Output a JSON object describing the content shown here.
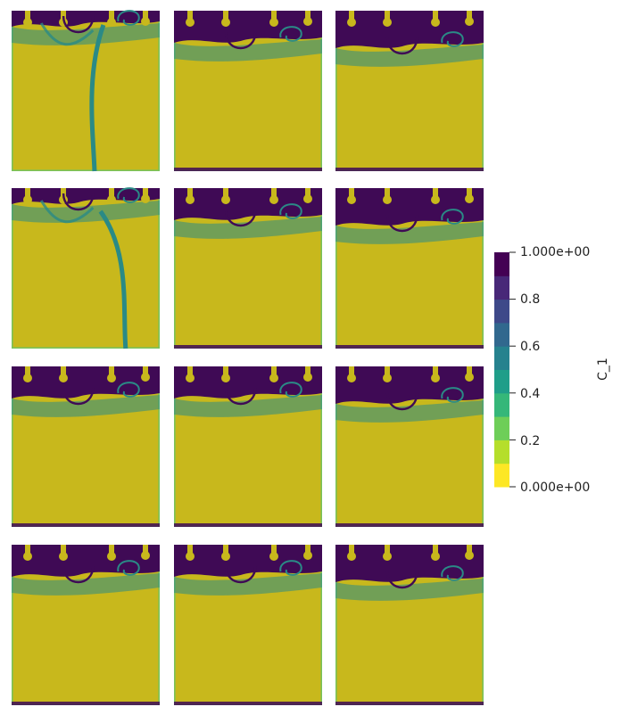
{
  "chart_data": {
    "type": "heatmap",
    "panel_grid": {
      "rows": 4,
      "cols": 3
    },
    "field": "C_1",
    "colorbar": {
      "title": "C_1",
      "range": [
        0,
        1
      ],
      "tick_values": [
        1.0,
        0.8,
        0.6,
        0.4,
        0.2,
        0.0
      ],
      "tick_labels": [
        "1.000e+00",
        "0.8",
        "0.6",
        "0.4",
        "0.2",
        "0.000e+00"
      ],
      "bands": [
        "#fde725",
        "#b5de2b",
        "#6ece58",
        "#35b779",
        "#1f9e89",
        "#26828e",
        "#31688e",
        "#3e4989",
        "#482878",
        "#440154"
      ]
    },
    "colors": {
      "background_field": "#c8b81c",
      "edge_low": "#7ac25a",
      "mid": "#2a8a86",
      "high": "#3f0a55"
    }
  }
}
